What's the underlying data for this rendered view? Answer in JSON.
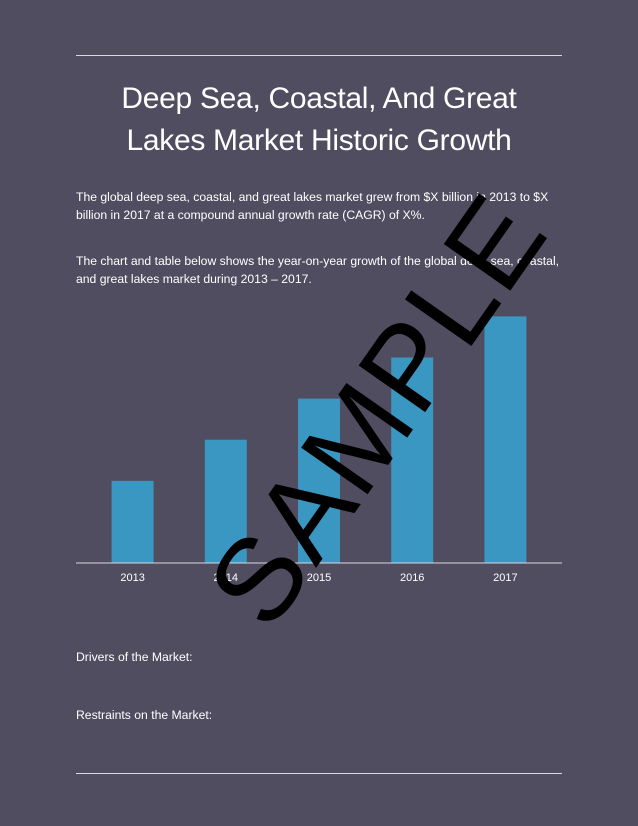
{
  "title_line1": "Deep Sea, Coastal, And Great",
  "title_line2": "Lakes Market Historic Growth",
  "paragraph1": "The global deep sea, coastal, and great lakes market grew from $X billion in 2013 to $X billion in 2017 at a compound annual growth rate (CAGR) of X%.",
  "paragraph2": "The chart and table below shows the year-on-year growth of the global deep sea, coastal, and great lakes market during 2013 – 2017.",
  "watermark": "SAMPLE",
  "drivers_label": "Drivers of the Market:",
  "restraints_label": "Restraints on the Market:",
  "colors": {
    "background": "#4f4d5f",
    "bar": "#3a97c1",
    "axis": "#d8d8de",
    "watermark": "#000000"
  },
  "chart_data": {
    "type": "bar",
    "categories": [
      "2013",
      "2014",
      "2015",
      "2016",
      "2017"
    ],
    "values": [
      1,
      1.5,
      2,
      2.5,
      3
    ],
    "title": "",
    "xlabel": "",
    "ylabel": "",
    "ylim": [
      0,
      3.2
    ],
    "grid": false,
    "legend": "none"
  }
}
